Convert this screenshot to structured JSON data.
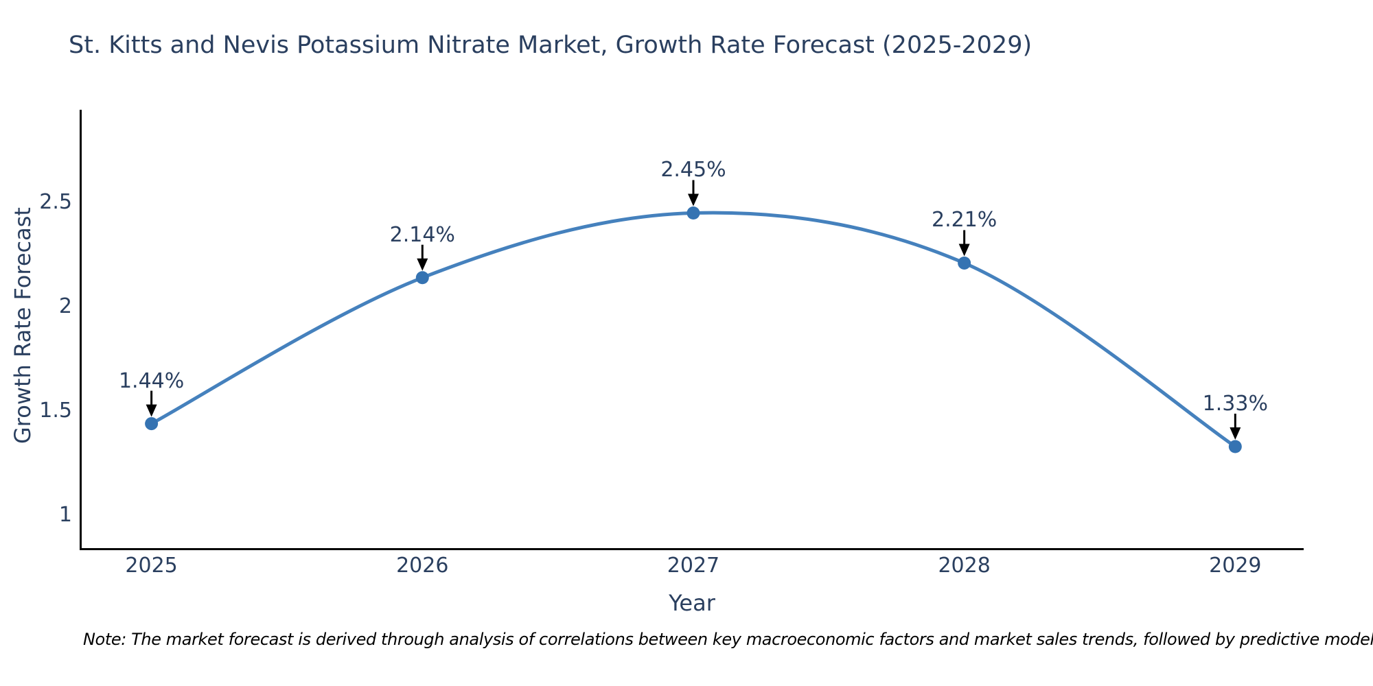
{
  "title": "St. Kitts and Nevis Potassium Nitrate Market, Growth Rate Forecast (2025-2029)",
  "note": "Note: The market forecast is derived through analysis of correlations between key macroeconomic factors and market sales trends, followed by predictive modeling to project future sales",
  "chart_data": {
    "type": "line",
    "line_shape": "spline",
    "title": "St. Kitts and Nevis Potassium Nitrate Market, Growth Rate Forecast (2025-2029)",
    "xlabel": "Year",
    "ylabel": "Growth Rate Forecast",
    "x": [
      2025,
      2026,
      2027,
      2028,
      2029
    ],
    "values": [
      1.44,
      2.14,
      2.45,
      2.21,
      1.33
    ],
    "point_labels": [
      "1.44%",
      "2.14%",
      "2.45%",
      "2.21%",
      "1.33%"
    ],
    "xticks": [
      "2025",
      "2026",
      "2027",
      "2028",
      "2029"
    ],
    "yticks": [
      1,
      1.5,
      2,
      2.5
    ],
    "xlim": [
      2024.74,
      2029.25
    ],
    "ylim": [
      0.84,
      2.945
    ],
    "grid": false,
    "legend": false,
    "annotation_style": "black-arrow-down-to-point",
    "colors": {
      "line": "#4581bd",
      "marker": "#3573b2",
      "arrow": "#000000",
      "axis": "#000000",
      "text": "#2a3f5f",
      "note": "#000000"
    }
  }
}
